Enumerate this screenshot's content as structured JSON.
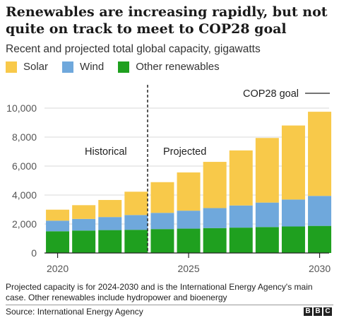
{
  "title": "Renewables are increasing rapidly, but not quite on track to meet to COP28 goal",
  "subtitle": "Recent and projected total global capacity, gigawatts",
  "legend": [
    {
      "label": "Solar",
      "color": "#f8c94a"
    },
    {
      "label": "Wind",
      "color": "#6fa8dc"
    },
    {
      "label": "Other renewables",
      "color": "#1fa01f"
    }
  ],
  "annotations": {
    "historical": "Historical",
    "projected": "Projected",
    "cop28_goal": "COP28 goal"
  },
  "note": "Projected capacity is for 2024-2030 and is the International Energy Agency's main case. Other renewables include hydropower and bioenergy",
  "source": "Source: International Energy Agency",
  "logo": [
    "B",
    "B",
    "C"
  ],
  "chart_data": {
    "type": "bar",
    "stacked": true,
    "x": [
      2020,
      2021,
      2022,
      2023,
      2024,
      2025,
      2026,
      2027,
      2028,
      2029,
      2030
    ],
    "x_tick_labels": [
      "2020",
      "2025",
      "2030"
    ],
    "y_tick_labels": [
      "0",
      "2,000",
      "4,000",
      "6,000",
      "8,000",
      "10,000"
    ],
    "ylim": [
      0,
      11000
    ],
    "series": [
      {
        "name": "Other renewables",
        "color": "#1fa01f",
        "values": [
          1500,
          1550,
          1580,
          1600,
          1650,
          1680,
          1720,
          1750,
          1790,
          1830,
          1870
        ]
      },
      {
        "name": "Wind",
        "color": "#6fa8dc",
        "values": [
          730,
          800,
          900,
          1020,
          1120,
          1240,
          1380,
          1530,
          1690,
          1860,
          2070
        ]
      },
      {
        "name": "Solar",
        "color": "#f8c94a",
        "values": [
          760,
          950,
          1180,
          1610,
          2120,
          2640,
          3190,
          3800,
          4460,
          5110,
          5810
        ]
      }
    ],
    "divider_after_x": 2023,
    "grid": true,
    "legend_position": "top-left"
  }
}
